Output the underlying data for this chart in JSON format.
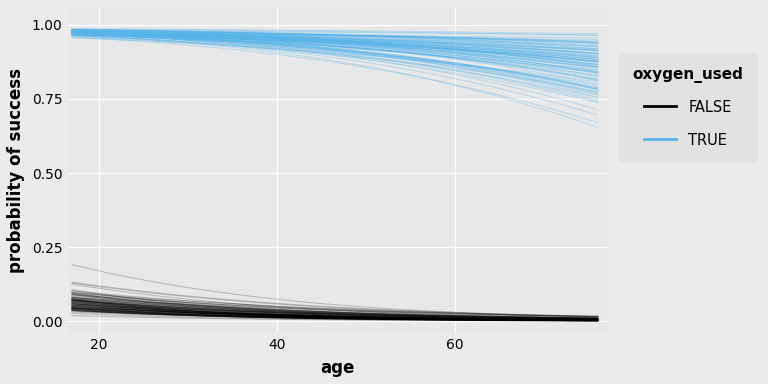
{
  "age_min": 17,
  "age_max": 76,
  "n_ages": 300,
  "n_curves": 100,
  "seed": 42,
  "xlabel": "age",
  "ylabel": "probability of success",
  "ylim": [
    -0.04,
    1.06
  ],
  "xlim": [
    16.5,
    77
  ],
  "yticks": [
    0.0,
    0.25,
    0.5,
    0.75,
    1.0
  ],
  "xticks": [
    20,
    40,
    60
  ],
  "bg_color": "#EBEBEB",
  "plot_bg_color": "#E8E8E8",
  "grid_color": "#FFFFFF",
  "blue_color": "#56B4E9",
  "black_color": "#000000",
  "legend_title": "oxygen_used",
  "legend_labels": [
    "FALSE",
    "TRUE"
  ],
  "legend_bg": "#E0E0E0",
  "alpha_blue": 0.35,
  "alpha_black": 0.22,
  "true_intercept_mean": 4.2,
  "true_intercept_std": 0.25,
  "true_slope_mean": -0.03,
  "true_slope_std": 0.008,
  "false_intercept_mean": -2.0,
  "false_intercept_std": 0.35,
  "false_slope_mean": -0.045,
  "false_slope_std": 0.008,
  "line_width": 0.7
}
